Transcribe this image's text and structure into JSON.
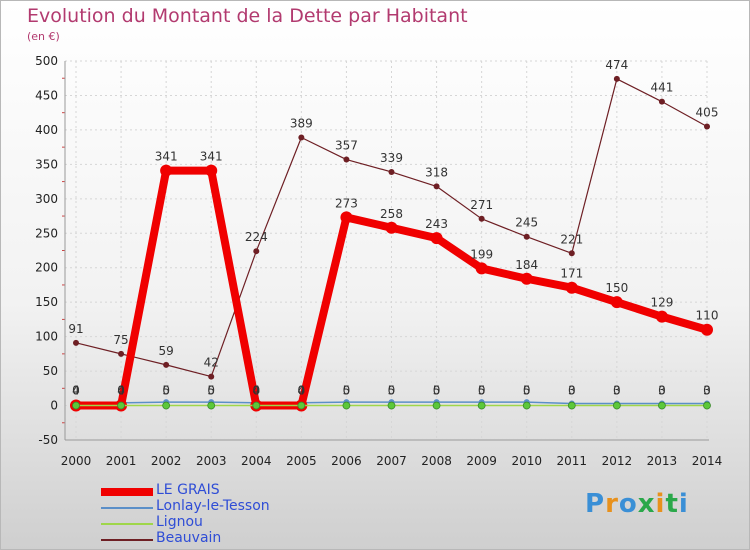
{
  "title": "Evolution du Montant de la Dette par Habitant",
  "unit": "(en €)",
  "logo": {
    "text": "Proxiti",
    "colors": [
      "#3a8fd6",
      "#e8911c",
      "#3a8fd6",
      "#2aa84a",
      "#e8911c",
      "#2aa84a",
      "#3a8fd6"
    ]
  },
  "chart_data": {
    "type": "line",
    "title": "Evolution du Montant de la Dette par Habitant",
    "ylabel": "(en €)",
    "xlabel": "",
    "x": [
      "2000",
      "2001",
      "2002",
      "2003",
      "2004",
      "2005",
      "2006",
      "2007",
      "2008",
      "2009",
      "2010",
      "2011",
      "2012",
      "2013",
      "2014"
    ],
    "yticks": [
      -50,
      0,
      50,
      100,
      150,
      200,
      250,
      300,
      350,
      400,
      450,
      500
    ],
    "ylim": [
      -50,
      500
    ],
    "grid": true,
    "legend_position": "bottom-left",
    "series": [
      {
        "name": "LE GRAIS",
        "color": "#f00000",
        "values": [
          0,
          0,
          341,
          341,
          0,
          0,
          273,
          258,
          243,
          199,
          184,
          171,
          150,
          129,
          110
        ],
        "labels": [
          "0",
          "0",
          "341",
          "341",
          "0",
          "0",
          "273",
          "258",
          "243",
          "199",
          "184",
          "171",
          "150",
          "129",
          "110"
        ]
      },
      {
        "name": "Lonlay-le-Tesson",
        "color": "#5b8fc8",
        "values": [
          4,
          4,
          5,
          5,
          4,
          4,
          5,
          5,
          5,
          5,
          5,
          3,
          3,
          3,
          3
        ],
        "labels": [
          "4",
          "4",
          "5",
          "5",
          "4",
          "4",
          "5",
          "5",
          "5",
          "5",
          "5",
          "3",
          "3",
          "3",
          "3"
        ]
      },
      {
        "name": "Lignou",
        "color": "#9fd64a",
        "values": [
          0,
          0,
          0,
          0,
          0,
          0,
          0,
          0,
          0,
          0,
          0,
          0,
          0,
          0,
          0
        ],
        "labels": [
          "0",
          "0",
          "0",
          "0",
          "0",
          "0",
          "0",
          "0",
          "0",
          "0",
          "0",
          "0",
          "0",
          "0",
          "0"
        ]
      },
      {
        "name": "Beauvain",
        "color": "#6e1f24",
        "values": [
          91,
          75,
          59,
          42,
          224,
          389,
          357,
          339,
          318,
          271,
          245,
          221,
          474,
          441,
          405
        ],
        "labels": [
          "91",
          "75",
          "59",
          "42",
          "224",
          "389",
          "357",
          "339",
          "318",
          "271",
          "245",
          "221",
          "474",
          "441",
          "405"
        ]
      }
    ]
  }
}
